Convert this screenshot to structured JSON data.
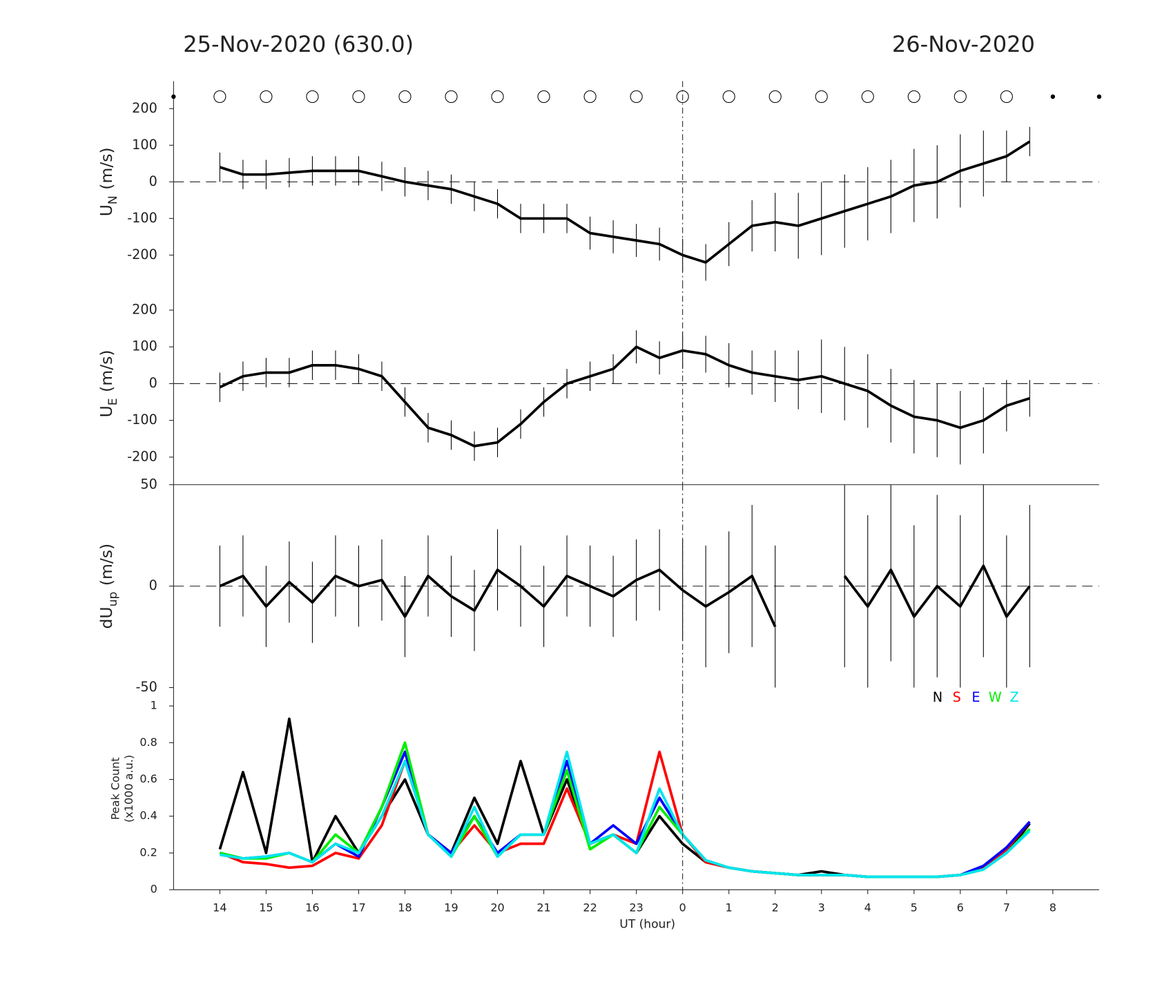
{
  "chart_data": [
    {
      "type": "errorline",
      "title": "25-Nov-2020 (630.0)",
      "title_right": "26-Nov-2020",
      "ylabel": "U",
      "ylabel_sub": "N",
      "ylabel_unit": "(m/s)",
      "color": "#000000",
      "x": [
        14,
        14.5,
        15,
        15.5,
        16,
        16.5,
        17,
        17.5,
        18,
        18.5,
        19,
        19.5,
        20,
        20.5,
        21,
        21.5,
        22,
        22.5,
        23,
        23.5,
        24,
        24.5,
        25,
        25.5,
        26,
        26.5,
        27,
        27.5,
        28,
        28.5,
        29,
        29.5,
        30,
        30.5,
        31,
        31.5
      ],
      "values": [
        40,
        20,
        20,
        25,
        30,
        30,
        30,
        15,
        0,
        -10,
        -20,
        -40,
        -60,
        -100,
        -100,
        -100,
        -140,
        -150,
        -160,
        -170,
        -200,
        -220,
        -170,
        -120,
        -110,
        -120,
        -100,
        -80,
        -60,
        -40,
        -10,
        0,
        30,
        50,
        70,
        110
      ],
      "errors": [
        40,
        40,
        40,
        40,
        40,
        40,
        40,
        40,
        40,
        40,
        40,
        40,
        40,
        40,
        40,
        40,
        45,
        45,
        45,
        45,
        45,
        50,
        60,
        70,
        80,
        90,
        100,
        100,
        100,
        100,
        100,
        100,
        100,
        90,
        70,
        40
      ],
      "xlim": [
        13,
        33
      ],
      "ylim": [
        -275,
        275
      ],
      "yticks": [
        -200,
        -100,
        0,
        100,
        200
      ]
    },
    {
      "type": "errorline",
      "ylabel": "U",
      "ylabel_sub": "E",
      "ylabel_unit": "(m/s)",
      "color": "#000000",
      "x": [
        14,
        14.5,
        15,
        15.5,
        16,
        16.5,
        17,
        17.5,
        18,
        18.5,
        19,
        19.5,
        20,
        20.5,
        21,
        21.5,
        22,
        22.5,
        23,
        23.5,
        24,
        24.5,
        25,
        25.5,
        26,
        26.5,
        27,
        27.5,
        28,
        28.5,
        29,
        29.5,
        30,
        30.5,
        31,
        31.5
      ],
      "values": [
        -10,
        20,
        30,
        30,
        50,
        50,
        40,
        20,
        -50,
        -120,
        -140,
        -170,
        -160,
        -110,
        -50,
        0,
        20,
        40,
        100,
        70,
        90,
        80,
        50,
        30,
        20,
        10,
        20,
        0,
        -20,
        -60,
        -90,
        -100,
        -120,
        -100,
        -60,
        -40
      ],
      "errors": [
        40,
        40,
        40,
        40,
        40,
        40,
        40,
        40,
        40,
        40,
        40,
        40,
        40,
        40,
        40,
        40,
        40,
        40,
        45,
        45,
        50,
        50,
        60,
        60,
        70,
        80,
        100,
        100,
        100,
        100,
        100,
        100,
        100,
        90,
        70,
        50
      ],
      "xlim": [
        13,
        33
      ],
      "ylim": [
        -275,
        275
      ],
      "yticks": [
        -200,
        -100,
        0,
        100,
        200
      ]
    },
    {
      "type": "errorline",
      "ylabel": "dU",
      "ylabel_sub": "up",
      "ylabel_unit": "(m/s)",
      "color": "#000000",
      "x": [
        14,
        14.5,
        15,
        15.5,
        16,
        16.5,
        17,
        17.5,
        18,
        18.5,
        19,
        19.5,
        20,
        20.5,
        21,
        21.5,
        22,
        22.5,
        23,
        23.5,
        24,
        24.5,
        25,
        25.5,
        26,
        26.5,
        27,
        27.5,
        28,
        28.5,
        29,
        29.5,
        30,
        30.5,
        31,
        31.5
      ],
      "values": [
        0,
        5,
        -10,
        2,
        -8,
        5,
        0,
        3,
        -15,
        5,
        -5,
        -12,
        8,
        0,
        -10,
        5,
        0,
        -5,
        3,
        8,
        -2,
        -10,
        -3,
        5,
        -20,
        null,
        null,
        5,
        -10,
        8,
        -15,
        0,
        -10,
        10,
        -15,
        0
      ],
      "errors": [
        20,
        20,
        20,
        20,
        20,
        20,
        20,
        20,
        20,
        20,
        20,
        20,
        20,
        20,
        20,
        20,
        20,
        20,
        20,
        20,
        25,
        30,
        30,
        35,
        40,
        null,
        null,
        45,
        45,
        45,
        45,
        45,
        45,
        45,
        40,
        40
      ],
      "xlim": [
        13,
        33
      ],
      "ylim": [
        -50,
        50
      ],
      "yticks": [
        -50,
        0,
        50
      ]
    },
    {
      "type": "line",
      "ylabel": "Peak Count",
      "ylabel_unit": "(x1000 a.u.)",
      "xlabel": "UT (hour)",
      "x": [
        14,
        14.5,
        15,
        15.5,
        16,
        16.5,
        17,
        17.5,
        18,
        18.5,
        19,
        19.5,
        20,
        20.5,
        21,
        21.5,
        22,
        22.5,
        23,
        23.5,
        24,
        24.5,
        25,
        25.5,
        26,
        26.5,
        27,
        27.5,
        28,
        28.5,
        29,
        29.5,
        30,
        30.5,
        31,
        31.5
      ],
      "series": [
        {
          "name": "N",
          "color": "#000000",
          "values": [
            0.22,
            0.64,
            0.2,
            0.93,
            0.15,
            0.4,
            0.2,
            0.4,
            0.6,
            0.3,
            0.2,
            0.5,
            0.25,
            0.7,
            0.3,
            0.6,
            0.25,
            0.3,
            0.2,
            0.4,
            0.25,
            0.15,
            0.12,
            0.1,
            0.09,
            0.08,
            0.1,
            0.08,
            0.07,
            0.07,
            0.07,
            0.07,
            0.08,
            0.12,
            0.2,
            0.36
          ]
        },
        {
          "name": "S",
          "color": "#ff0000",
          "values": [
            0.2,
            0.15,
            0.14,
            0.12,
            0.13,
            0.2,
            0.17,
            0.35,
            0.7,
            0.3,
            0.2,
            0.35,
            0.2,
            0.25,
            0.25,
            0.55,
            0.25,
            0.3,
            0.25,
            0.75,
            0.3,
            0.15,
            0.12,
            0.1,
            0.09,
            0.08,
            0.08,
            0.08,
            0.07,
            0.07,
            0.07,
            0.07,
            0.08,
            0.12,
            0.22,
            0.37
          ]
        },
        {
          "name": "E",
          "color": "#0000ff",
          "values": [
            0.2,
            0.17,
            0.18,
            0.2,
            0.15,
            0.25,
            0.18,
            0.45,
            0.75,
            0.3,
            0.2,
            0.4,
            0.2,
            0.3,
            0.3,
            0.7,
            0.25,
            0.35,
            0.25,
            0.5,
            0.3,
            0.16,
            0.12,
            0.1,
            0.09,
            0.08,
            0.08,
            0.08,
            0.07,
            0.07,
            0.07,
            0.07,
            0.08,
            0.13,
            0.23,
            0.37
          ]
        },
        {
          "name": "W",
          "color": "#00ee00",
          "values": [
            0.2,
            0.17,
            0.17,
            0.2,
            0.15,
            0.3,
            0.2,
            0.45,
            0.8,
            0.3,
            0.18,
            0.4,
            0.18,
            0.3,
            0.3,
            0.65,
            0.22,
            0.3,
            0.2,
            0.45,
            0.3,
            0.16,
            0.12,
            0.1,
            0.09,
            0.08,
            0.08,
            0.08,
            0.07,
            0.07,
            0.07,
            0.07,
            0.08,
            0.11,
            0.2,
            0.33
          ]
        },
        {
          "name": "Z",
          "color": "#00e5ee",
          "values": [
            0.19,
            0.17,
            0.18,
            0.2,
            0.15,
            0.25,
            0.2,
            0.4,
            0.7,
            0.3,
            0.18,
            0.45,
            0.18,
            0.3,
            0.3,
            0.75,
            0.25,
            0.3,
            0.2,
            0.55,
            0.3,
            0.16,
            0.12,
            0.1,
            0.09,
            0.08,
            0.08,
            0.08,
            0.07,
            0.07,
            0.07,
            0.07,
            0.08,
            0.11,
            0.2,
            0.32
          ]
        }
      ],
      "xlim": [
        13,
        33
      ],
      "ylim": [
        0,
        1.1
      ],
      "yticks": [
        0,
        0.2,
        0.4,
        0.6,
        0.8,
        1
      ],
      "xticks": [
        14,
        15,
        16,
        17,
        18,
        19,
        20,
        21,
        22,
        23,
        {
          "value": 24,
          "label": "0"
        },
        {
          "value": 25,
          "label": "1"
        },
        {
          "value": 26,
          "label": "2"
        },
        {
          "value": 27,
          "label": "3"
        },
        {
          "value": 28,
          "label": "4"
        },
        {
          "value": 29,
          "label": "5"
        },
        {
          "value": 30,
          "label": "6"
        },
        {
          "value": 31,
          "label": "7"
        },
        {
          "value": 32,
          "label": "8"
        }
      ]
    }
  ]
}
